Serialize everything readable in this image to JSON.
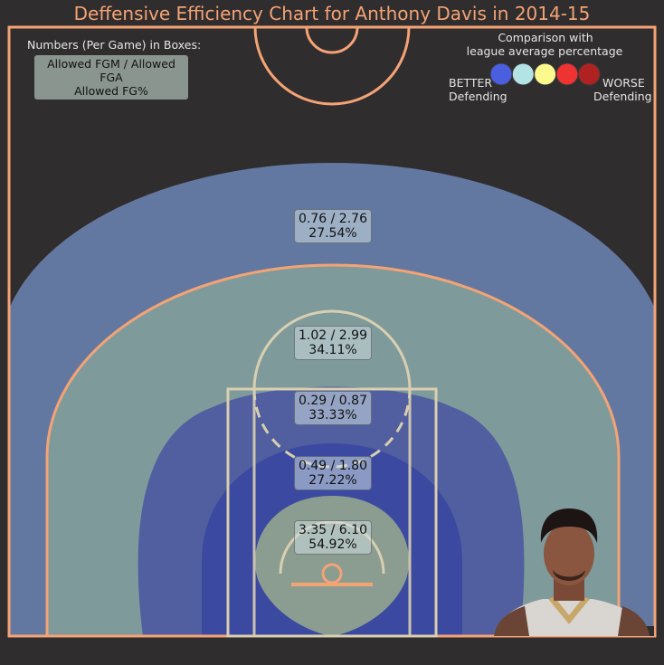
{
  "title": "Deffensive Efficiency Chart for Anthony Davis in 2014-15",
  "legend": {
    "numbers_header": "Numbers (Per Game) in Boxes:",
    "box_line1": "Allowed FGM / Allowed FGA",
    "box_line2": "Allowed FG%",
    "comparison_line1": "Comparison with",
    "comparison_line2": "league average percentage",
    "better_line1": "BETTER",
    "better_line2": "Defending",
    "worse_line1": "WORSE",
    "worse_line2": "Defending",
    "scale_colors": [
      "#4a5ee0",
      "#b4e3e6",
      "#fcfa8c",
      "#ef3232",
      "#b02222"
    ]
  },
  "colors": {
    "background": "#2f2d2e",
    "court_lines": "#f4a375",
    "paint_lines": "#d8cfb0",
    "title": "#f4a375"
  },
  "chart_data": {
    "type": "heatmap",
    "title": "Deffensive Efficiency Chart for Anthony Davis in 2014-15",
    "zones": [
      {
        "zone": "Above the Break 3",
        "fgm": "0.76",
        "fga": "2.76",
        "fg_pct": "27.54%",
        "fill": "#6378a0"
      },
      {
        "zone": "Mid-Range (Long)",
        "fgm": "1.02",
        "fga": "2.99",
        "fg_pct": "34.11%",
        "fill": "#7f9a9b"
      },
      {
        "zone": "Mid-Range (Short)",
        "fgm": "0.29",
        "fga": "0.87",
        "fg_pct": "33.33%",
        "fill": "#515fa0"
      },
      {
        "zone": "In The Paint (Non-RA)",
        "fgm": "0.49",
        "fga": "1.80",
        "fg_pct": "27.22%",
        "fill": "#3b4aa0"
      },
      {
        "zone": "Restricted Area",
        "fgm": "3.35",
        "fga": "6.10",
        "fg_pct": "54.92%",
        "fill": "#8b9d90"
      }
    ]
  },
  "player_photo": {
    "name": "Anthony Davis"
  }
}
